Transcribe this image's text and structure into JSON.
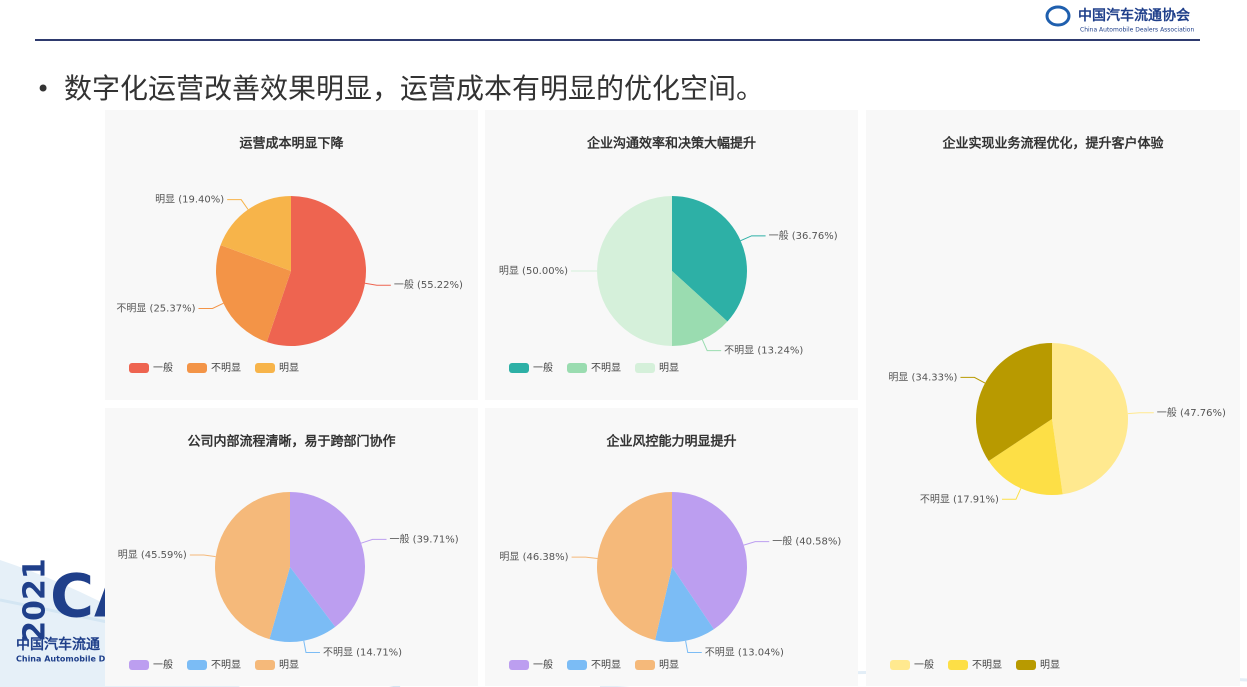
{
  "header": {
    "org_cn": "中国汽车流通协会",
    "org_en": "China Automobile Dealers Association",
    "headline": "数字化运营改善效果明显，运营成本有明显的优化空间。"
  },
  "footer_logo": {
    "year": "2021",
    "mark": "CA",
    "name_cn": "中国汽车流通",
    "name_en": "China Automobile De"
  },
  "chart_data": [
    {
      "type": "pie",
      "title": "运营成本明显下降",
      "categories": [
        "一般",
        "不明显",
        "明显"
      ],
      "values": [
        55.22,
        25.37,
        19.4
      ],
      "value_labels": [
        "一般 (55.22%)",
        "不明显 (25.37%)",
        "明显 (19.40%)"
      ],
      "colors": [
        "#ee6450",
        "#f39447",
        "#f7b44a"
      ]
    },
    {
      "type": "pie",
      "title": "企业沟通效率和决策大幅提升",
      "categories": [
        "一般",
        "不明显",
        "明显"
      ],
      "values": [
        36.76,
        13.24,
        50.0
      ],
      "value_labels": [
        "一般 (36.76%)",
        "不明显 (13.24%)",
        "明显 (50.00%)"
      ],
      "colors": [
        "#2db0a6",
        "#9adcb0",
        "#d5f0da"
      ]
    },
    {
      "type": "pie",
      "title": "企业实现业务流程优化，提升客户体验",
      "categories": [
        "一般",
        "不明显",
        "明显"
      ],
      "values": [
        47.76,
        17.91,
        34.33
      ],
      "value_labels": [
        "一般 (47.76%)",
        "不明显 (17.91%)",
        "明显 (34.33%)"
      ],
      "colors": [
        "#ffe98f",
        "#fddf46",
        "#b89a00"
      ]
    },
    {
      "type": "pie",
      "title": "公司内部流程清晰，易于跨部门协作",
      "categories": [
        "一般",
        "不明显",
        "明显"
      ],
      "values": [
        39.71,
        14.71,
        45.59
      ],
      "value_labels": [
        "一般 (39.71%)",
        "不明显 (14.71%)",
        "明显 (45.59%)"
      ],
      "colors": [
        "#bc9ef0",
        "#7bbcf5",
        "#f5b97a"
      ]
    },
    {
      "type": "pie",
      "title": "企业风控能力明显提升",
      "categories": [
        "一般",
        "不明显",
        "明显"
      ],
      "values": [
        40.58,
        13.04,
        46.38
      ],
      "value_labels": [
        "一般 (40.58%)",
        "不明显 (13.04%)",
        "明显 (46.38%)"
      ],
      "colors": [
        "#bc9ef0",
        "#7bbcf5",
        "#f5b97a"
      ]
    }
  ]
}
